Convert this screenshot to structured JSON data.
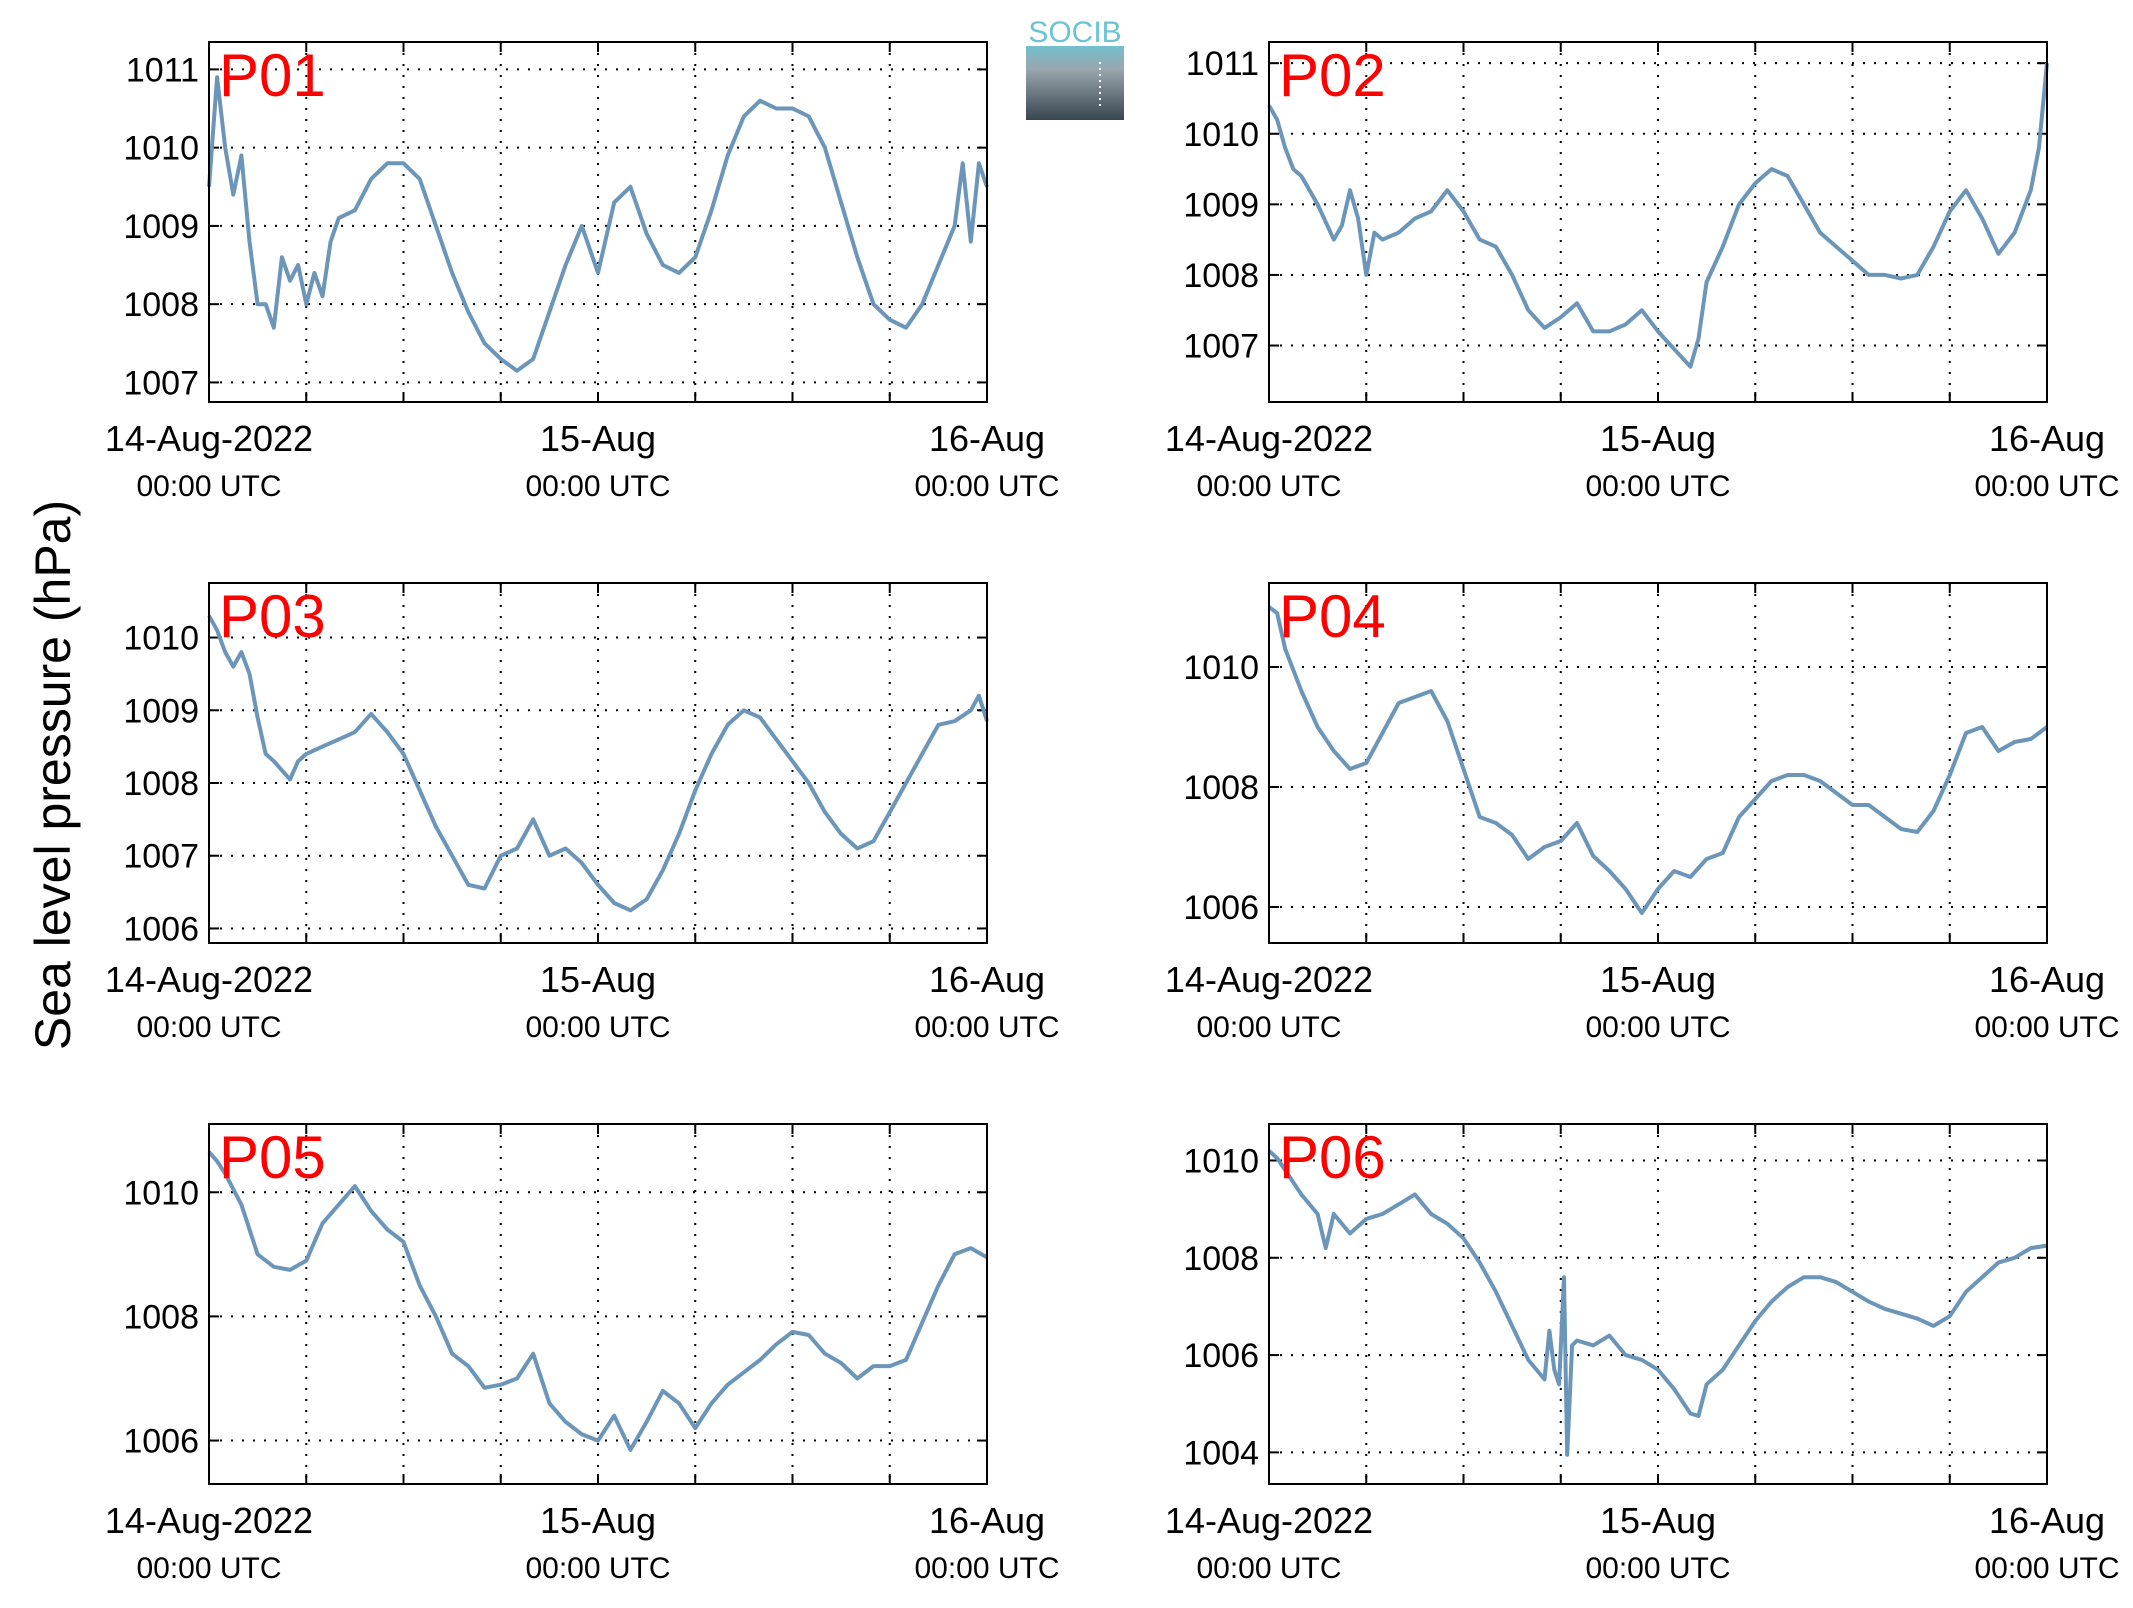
{
  "figure": {
    "ylabel": "Sea level pressure (hPa)",
    "logo_text": "SOCIB",
    "line_color": "#6b96b9",
    "label_color": "#ff0000",
    "grid": true,
    "x_tick_labels": [
      {
        "date": "14-Aug-2022",
        "time": "00:00 UTC"
      },
      {
        "date": "15-Aug",
        "time": "00:00 UTC"
      },
      {
        "date": "16-Aug",
        "time": "00:00 UTC"
      }
    ]
  },
  "chart_data": [
    {
      "type": "line",
      "label": "P01",
      "x_unit": "hours since 14-Aug-2022 00:00 UTC",
      "xlim": [
        0,
        48
      ],
      "ylim": [
        1006.75,
        1011.35
      ],
      "yticks": [
        1007,
        1008,
        1009,
        1010,
        1011
      ],
      "x": [
        0,
        0.5,
        1,
        1.5,
        2,
        2.5,
        3,
        3.5,
        4,
        4.5,
        5,
        5.5,
        6,
        6.5,
        7,
        7.5,
        8,
        9,
        10,
        11,
        12,
        13,
        14,
        15,
        16,
        17,
        18,
        19,
        20,
        21,
        22,
        23,
        24,
        25,
        26,
        27,
        28,
        29,
        30,
        31,
        32,
        33,
        34,
        35,
        36,
        37,
        38,
        39,
        40,
        41,
        42,
        43,
        44,
        45,
        46,
        46.5,
        47,
        47.5,
        48
      ],
      "y": [
        1009.5,
        1010.9,
        1010.0,
        1009.4,
        1009.9,
        1008.8,
        1008.0,
        1008.0,
        1007.7,
        1008.6,
        1008.3,
        1008.5,
        1008.0,
        1008.4,
        1008.1,
        1008.8,
        1009.1,
        1009.2,
        1009.6,
        1009.8,
        1009.8,
        1009.6,
        1009.0,
        1008.4,
        1007.9,
        1007.5,
        1007.3,
        1007.15,
        1007.3,
        1007.9,
        1008.5,
        1009.0,
        1008.4,
        1009.3,
        1009.5,
        1008.9,
        1008.5,
        1008.4,
        1008.6,
        1009.2,
        1009.9,
        1010.4,
        1010.6,
        1010.5,
        1010.5,
        1010.4,
        1010.0,
        1009.3,
        1008.6,
        1008.0,
        1007.8,
        1007.7,
        1008.0,
        1008.5,
        1009.0,
        1009.8,
        1008.8,
        1009.8,
        1009.5
      ]
    },
    {
      "type": "line",
      "label": "P02",
      "x_unit": "hours since 14-Aug-2022 00:00 UTC",
      "xlim": [
        0,
        48
      ],
      "ylim": [
        1006.2,
        1011.3
      ],
      "yticks": [
        1007,
        1008,
        1009,
        1010,
        1011
      ],
      "x": [
        0,
        0.5,
        1,
        1.5,
        2,
        3,
        4,
        4.5,
        5,
        5.5,
        6,
        6.5,
        7,
        8,
        9,
        10,
        11,
        12,
        13,
        14,
        15,
        16,
        17,
        18,
        19,
        20,
        21,
        22,
        23,
        24,
        25,
        26,
        26.5,
        27,
        28,
        29,
        30,
        31,
        32,
        33,
        34,
        35,
        36,
        37,
        38,
        39,
        40,
        41,
        42,
        43,
        44,
        45,
        46,
        47,
        47.5,
        48
      ],
      "y": [
        1010.4,
        1010.2,
        1009.8,
        1009.5,
        1009.4,
        1009.0,
        1008.5,
        1008.7,
        1009.2,
        1008.8,
        1008.0,
        1008.6,
        1008.5,
        1008.6,
        1008.8,
        1008.9,
        1009.2,
        1008.9,
        1008.5,
        1008.4,
        1008.0,
        1007.5,
        1007.25,
        1007.4,
        1007.6,
        1007.2,
        1007.2,
        1007.3,
        1007.5,
        1007.2,
        1006.95,
        1006.7,
        1007.1,
        1007.9,
        1008.4,
        1009.0,
        1009.3,
        1009.5,
        1009.4,
        1009.0,
        1008.6,
        1008.4,
        1008.2,
        1008.0,
        1008.0,
        1007.95,
        1008.0,
        1008.4,
        1008.9,
        1009.2,
        1008.8,
        1008.3,
        1008.6,
        1009.2,
        1009.8,
        1011.0
      ]
    },
    {
      "type": "line",
      "label": "P03",
      "x_unit": "hours since 14-Aug-2022 00:00 UTC",
      "xlim": [
        0,
        48
      ],
      "ylim": [
        1005.8,
        1010.75
      ],
      "yticks": [
        1006,
        1007,
        1008,
        1009,
        1010
      ],
      "x": [
        0,
        0.5,
        1,
        1.5,
        2,
        2.5,
        3,
        3.5,
        4,
        5,
        5.5,
        6,
        7,
        8,
        9,
        10,
        11,
        12,
        13,
        14,
        15,
        16,
        17,
        18,
        19,
        20,
        21,
        22,
        23,
        24,
        25,
        26,
        27,
        28,
        29,
        30,
        31,
        32,
        33,
        34,
        35,
        36,
        37,
        38,
        39,
        40,
        41,
        42,
        43,
        44,
        45,
        46,
        47,
        47.5,
        48
      ],
      "y": [
        1010.3,
        1010.1,
        1009.8,
        1009.6,
        1009.8,
        1009.5,
        1008.9,
        1008.4,
        1008.3,
        1008.05,
        1008.3,
        1008.4,
        1008.5,
        1008.6,
        1008.7,
        1008.95,
        1008.7,
        1008.4,
        1007.9,
        1007.4,
        1007.0,
        1006.6,
        1006.55,
        1007.0,
        1007.1,
        1007.5,
        1007.0,
        1007.1,
        1006.9,
        1006.6,
        1006.35,
        1006.25,
        1006.4,
        1006.8,
        1007.3,
        1007.9,
        1008.4,
        1008.8,
        1009.0,
        1008.9,
        1008.6,
        1008.3,
        1008.0,
        1007.6,
        1007.3,
        1007.1,
        1007.2,
        1007.6,
        1008.0,
        1008.4,
        1008.8,
        1008.85,
        1009.0,
        1009.2,
        1008.85
      ]
    },
    {
      "type": "line",
      "label": "P04",
      "x_unit": "hours since 14-Aug-2022 00:00 UTC",
      "xlim": [
        0,
        48
      ],
      "ylim": [
        1005.4,
        1011.4
      ],
      "yticks": [
        1006,
        1008,
        1010
      ],
      "x": [
        0,
        0.5,
        1,
        2,
        3,
        4,
        5,
        6,
        7,
        8,
        9,
        10,
        11,
        12,
        13,
        14,
        15,
        16,
        17,
        18,
        19,
        20,
        21,
        22,
        23,
        24,
        25,
        26,
        27,
        28,
        29,
        30,
        31,
        32,
        33,
        34,
        35,
        36,
        37,
        38,
        39,
        40,
        41,
        42,
        43,
        44,
        45,
        46,
        47,
        48
      ],
      "y": [
        1011.0,
        1010.9,
        1010.3,
        1009.6,
        1009.0,
        1008.6,
        1008.3,
        1008.4,
        1008.9,
        1009.4,
        1009.5,
        1009.6,
        1009.1,
        1008.3,
        1007.5,
        1007.4,
        1007.2,
        1006.8,
        1007.0,
        1007.1,
        1007.4,
        1006.85,
        1006.6,
        1006.3,
        1005.9,
        1006.3,
        1006.6,
        1006.5,
        1006.8,
        1006.9,
        1007.5,
        1007.8,
        1008.1,
        1008.2,
        1008.2,
        1008.1,
        1007.9,
        1007.7,
        1007.7,
        1007.5,
        1007.3,
        1007.25,
        1007.6,
        1008.2,
        1008.9,
        1009.0,
        1008.6,
        1008.75,
        1008.8,
        1009.0
      ]
    },
    {
      "type": "line",
      "label": "P05",
      "x_unit": "hours since 14-Aug-2022 00:00 UTC",
      "xlim": [
        0,
        48
      ],
      "ylim": [
        1005.3,
        1011.1
      ],
      "yticks": [
        1006,
        1008,
        1010
      ],
      "x": [
        0,
        0.5,
        1,
        2,
        3,
        4,
        5,
        6,
        7,
        8,
        9,
        10,
        11,
        12,
        13,
        14,
        15,
        16,
        17,
        18,
        19,
        20,
        21,
        22,
        23,
        24,
        25,
        26,
        27,
        28,
        29,
        30,
        31,
        32,
        33,
        34,
        35,
        36,
        37,
        38,
        39,
        40,
        41,
        42,
        43,
        44,
        45,
        46,
        47,
        48
      ],
      "y": [
        1010.65,
        1010.5,
        1010.3,
        1009.8,
        1009.0,
        1008.8,
        1008.75,
        1008.9,
        1009.5,
        1009.8,
        1010.1,
        1009.7,
        1009.4,
        1009.2,
        1008.5,
        1008.0,
        1007.4,
        1007.2,
        1006.85,
        1006.9,
        1007.0,
        1007.4,
        1006.6,
        1006.3,
        1006.1,
        1006.0,
        1006.4,
        1005.85,
        1006.3,
        1006.8,
        1006.6,
        1006.2,
        1006.6,
        1006.9,
        1007.1,
        1007.3,
        1007.55,
        1007.75,
        1007.7,
        1007.4,
        1007.25,
        1007.0,
        1007.2,
        1007.2,
        1007.3,
        1007.9,
        1008.5,
        1009.0,
        1009.1,
        1008.95
      ]
    },
    {
      "type": "line",
      "label": "P06",
      "x_unit": "hours since 14-Aug-2022 00:00 UTC",
      "xlim": [
        0,
        48
      ],
      "ylim": [
        1003.35,
        1010.75
      ],
      "yticks": [
        1004,
        1006,
        1008,
        1010
      ],
      "x": [
        0,
        0.5,
        1,
        2,
        3,
        3.5,
        4,
        5,
        6,
        7,
        8,
        9,
        10,
        11,
        12,
        13,
        14,
        15,
        16,
        17,
        17.3,
        17.6,
        17.9,
        18.2,
        18.4,
        18.7,
        19,
        20,
        21,
        22,
        23,
        24,
        25,
        26,
        26.5,
        27,
        28,
        29,
        30,
        31,
        32,
        33,
        34,
        35,
        36,
        37,
        38,
        39,
        40,
        41,
        42,
        43,
        44,
        45,
        46,
        47,
        48
      ],
      "y": [
        1010.2,
        1010.05,
        1009.8,
        1009.3,
        1008.9,
        1008.2,
        1008.9,
        1008.5,
        1008.8,
        1008.9,
        1009.1,
        1009.3,
        1008.9,
        1008.7,
        1008.4,
        1007.9,
        1007.3,
        1006.6,
        1005.9,
        1005.5,
        1006.5,
        1005.7,
        1005.4,
        1007.6,
        1003.95,
        1006.2,
        1006.3,
        1006.2,
        1006.4,
        1006.0,
        1005.9,
        1005.7,
        1005.3,
        1004.8,
        1004.75,
        1005.4,
        1005.7,
        1006.2,
        1006.7,
        1007.1,
        1007.4,
        1007.6,
        1007.6,
        1007.5,
        1007.3,
        1007.1,
        1006.95,
        1006.85,
        1006.75,
        1006.6,
        1006.8,
        1007.3,
        1007.6,
        1007.9,
        1008.0,
        1008.2,
        1008.25
      ]
    }
  ]
}
